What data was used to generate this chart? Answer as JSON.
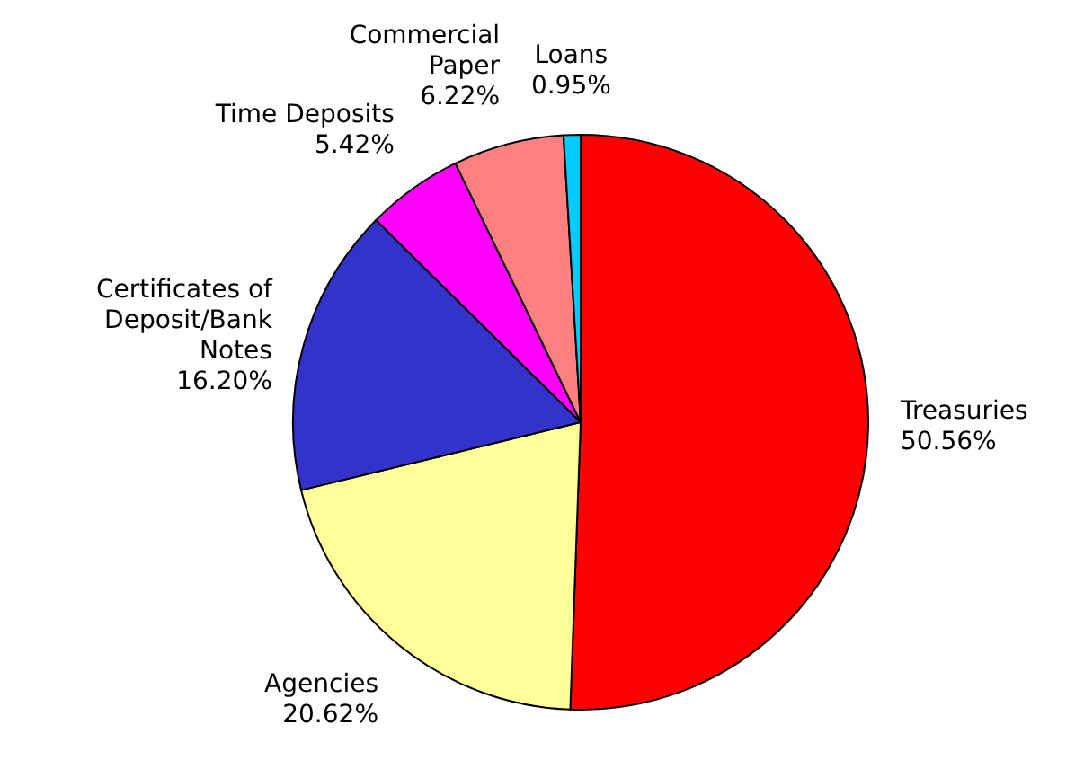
{
  "chart_data": {
    "type": "pie",
    "categories": [
      "Treasuries",
      "Agencies",
      "Certificates of Deposit/Bank Notes",
      "Time Deposits",
      "Commercial Paper",
      "Loans"
    ],
    "values": [
      50.56,
      20.62,
      16.2,
      5.42,
      6.22,
      0.95
    ],
    "value_labels": [
      "50.56%",
      "20.62%",
      "16.20%",
      "5.42%",
      "6.22%",
      "0.95%"
    ],
    "colors": [
      "#ff0000",
      "#ffff99",
      "#3333cc",
      "#ff00ff",
      "#ff8080",
      "#00ccff"
    ],
    "legend": false
  }
}
